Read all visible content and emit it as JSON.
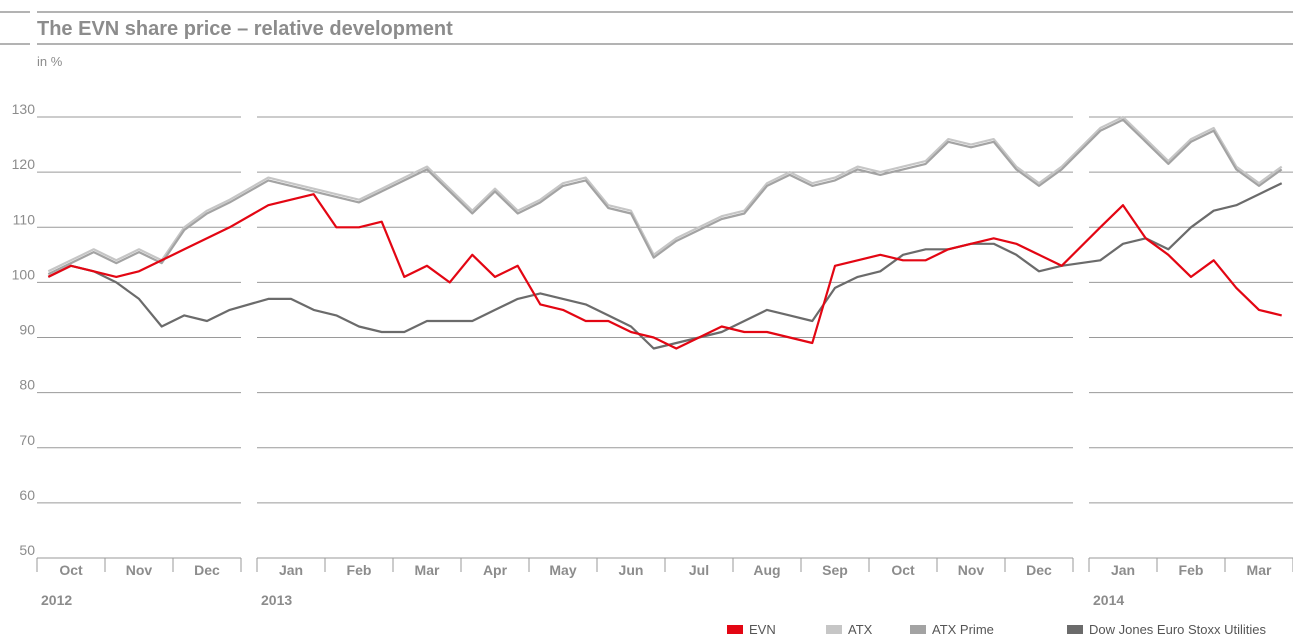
{
  "chart_data": {
    "type": "line",
    "title": "The EVN share price – relative development",
    "subtitle": "in %",
    "category_groups": [
      {
        "label": "2012",
        "categories": [
          null,
          "Oct",
          null,
          null,
          "Nov",
          null,
          null,
          "Dec",
          null
        ]
      },
      {
        "label": "2013",
        "categories": [
          null,
          "Jan",
          null,
          null,
          "Feb",
          null,
          null,
          "Mar",
          null,
          null,
          "Apr",
          null,
          null,
          "May",
          null,
          null,
          "Jun",
          null,
          null,
          "Jul",
          null,
          null,
          "Aug",
          null,
          null,
          "Sep",
          null,
          null,
          "Oct",
          null,
          null,
          "Nov",
          null,
          null,
          "Dec",
          null
        ]
      },
      {
        "label": "2014",
        "categories": [
          null,
          "Jan",
          null,
          null,
          "Feb",
          null,
          null,
          "Mar",
          null
        ]
      }
    ],
    "series": [
      {
        "name": "EVN",
        "color": "#e30613",
        "values": [
          101,
          103,
          102,
          101,
          102,
          104,
          106,
          108,
          110,
          114,
          115,
          116,
          110,
          110,
          111,
          101,
          103,
          100,
          105,
          101,
          103,
          96,
          95,
          93,
          93,
          91,
          90,
          88,
          90,
          92,
          91,
          91,
          90,
          89,
          103,
          104,
          105,
          104,
          104,
          106,
          107,
          108,
          107,
          105,
          103,
          110,
          114,
          108,
          105,
          101,
          104,
          99,
          95,
          94
        ]
      },
      {
        "name": "ATX",
        "color": "#c6c6c6",
        "values": [
          102,
          104,
          106,
          104,
          106,
          104,
          110,
          113,
          115,
          119,
          118,
          117,
          116,
          115,
          117,
          119,
          121,
          117,
          113,
          117,
          113,
          115,
          118,
          119,
          114,
          113,
          105,
          108,
          110,
          112,
          113,
          118,
          120,
          118,
          119,
          121,
          120,
          121,
          122,
          126,
          125,
          126,
          121,
          118,
          121,
          128,
          130,
          126,
          122,
          126,
          128,
          121,
          118,
          121
        ]
      },
      {
        "name": "ATX Prime",
        "color": "#a3a3a3",
        "values": [
          101.5,
          103.5,
          105.5,
          103.5,
          105.5,
          103.5,
          109.5,
          112.5,
          114.5,
          118.5,
          117.5,
          116.5,
          115.5,
          114.5,
          116.5,
          118.5,
          120.5,
          116.5,
          112.5,
          116.5,
          112.5,
          114.5,
          117.5,
          118.5,
          113.5,
          112.5,
          104.5,
          107.5,
          109.5,
          111.5,
          112.5,
          117.5,
          119.5,
          117.5,
          118.5,
          120.5,
          119.5,
          120.5,
          121.5,
          125.5,
          124.5,
          125.5,
          120.5,
          117.5,
          120.5,
          127.5,
          129.5,
          125.5,
          121.5,
          125.5,
          127.5,
          120.5,
          117.5,
          120.5
        ]
      },
      {
        "name": "Dow Jones Euro Stoxx Utilities",
        "color": "#6b6b6b",
        "values": [
          101,
          103,
          102,
          100,
          97,
          92,
          94,
          93,
          95,
          97,
          97,
          95,
          94,
          92,
          91,
          91,
          93,
          93,
          93,
          95,
          97,
          98,
          97,
          96,
          94,
          92,
          88,
          89,
          90,
          91,
          93,
          95,
          94,
          93,
          99,
          101,
          102,
          105,
          106,
          106,
          107,
          107,
          105,
          102,
          103,
          104,
          107,
          108,
          106,
          110,
          113,
          114,
          116,
          118
        ]
      }
    ],
    "ylim": [
      50,
      130
    ],
    "yticks": [
      50,
      60,
      70,
      80,
      90,
      100,
      110,
      120,
      130
    ],
    "grid": true
  }
}
